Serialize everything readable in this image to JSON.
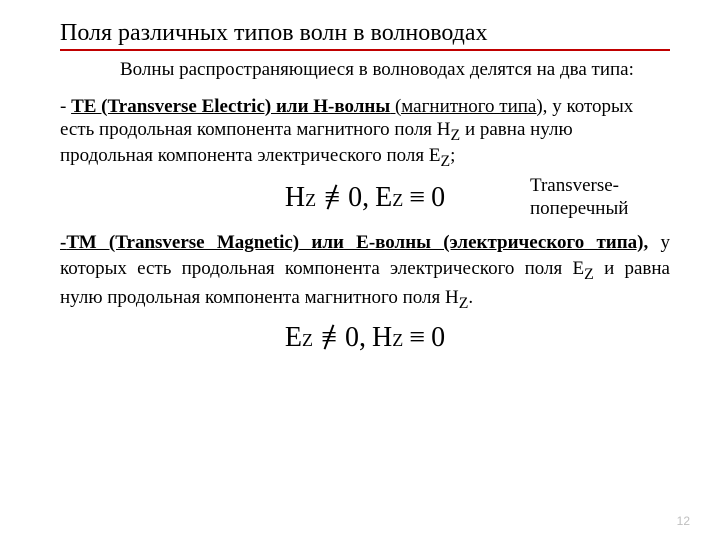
{
  "title": "Поля различных типов волн в волноводах",
  "intro": "Волны распространяющиеся в волноводах делятся на два типа:",
  "te": {
    "lead": " - ",
    "head": "ТЕ (Transverse Electric) или Н-волны",
    "head_tail": " (магнитного типа),",
    "body_rest": " у которых есть продольная компонента магнитного поля H",
    "sub1": "Z",
    "body_mid": " и равна нулю продольная компонента электрического поля E",
    "sub2": "Z",
    "end": ";"
  },
  "formula1": {
    "H": "H",
    "E": "E",
    "z": "Z",
    "zero": "0",
    "comma": ","
  },
  "note": "Transverse-поперечный",
  "tm": {
    "lead": "-",
    "head": "ТМ (Transverse Magnetic) или Е-волны (электрического типа),",
    "body_rest": " у которых есть продольная компонента электрического поля E",
    "sub1": "Z",
    "body_mid": " и равна нулю продольная компонента магнитного поля H",
    "sub2": "Z",
    "end": "."
  },
  "formula2": {
    "E": "E",
    "H": "H",
    "z": "Z",
    "zero": "0",
    "comma": ","
  },
  "page": "12",
  "colors": {
    "underline": "#c00000",
    "text": "#000000",
    "pagenum": "#bfbfbf",
    "bg": "#ffffff"
  }
}
